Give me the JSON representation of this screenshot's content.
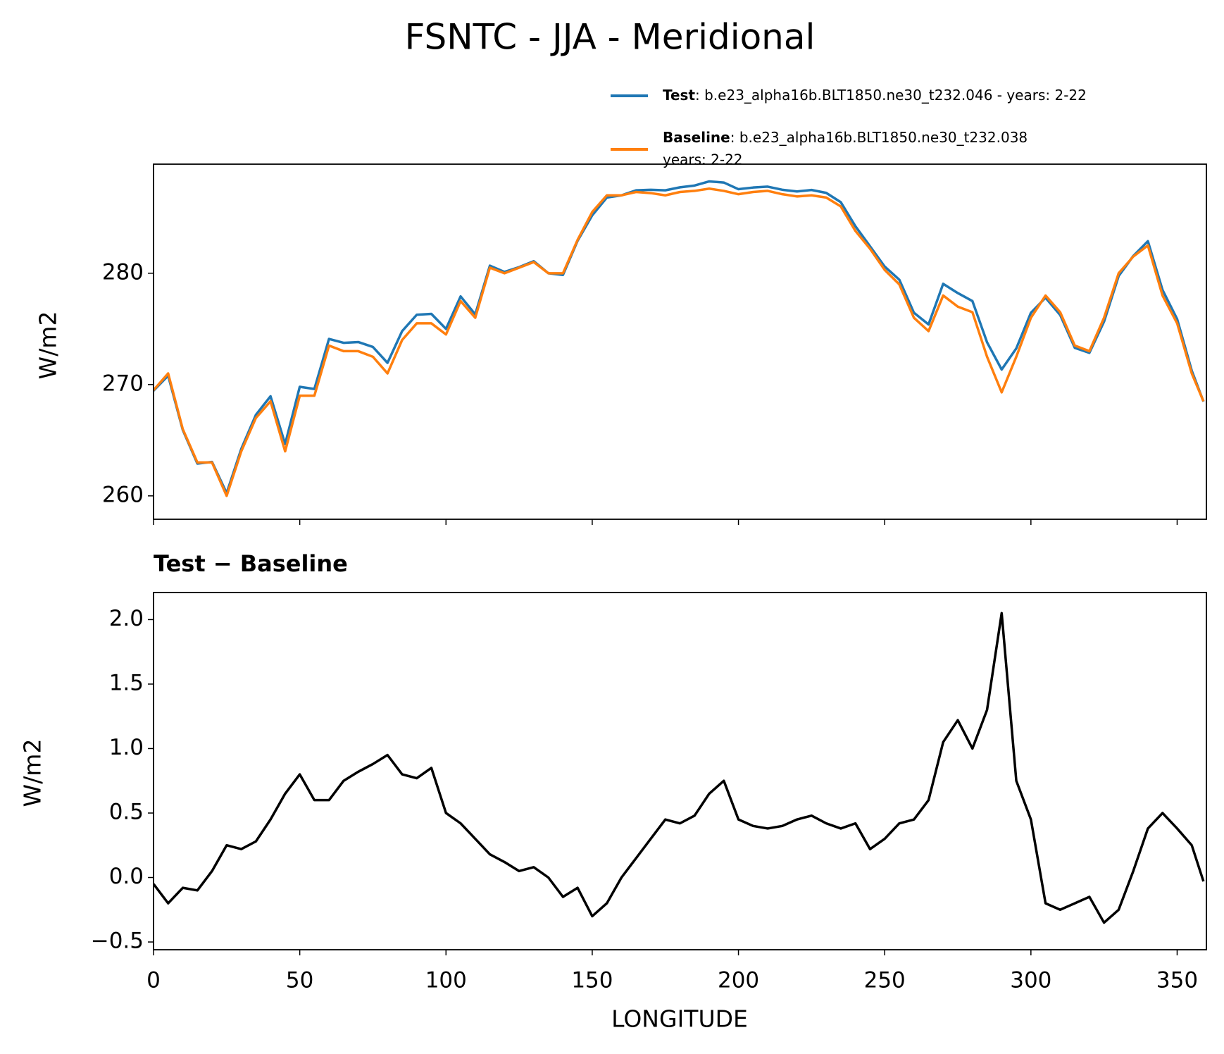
{
  "chart_data": [
    {
      "type": "line",
      "title": "FSNTC - JJA - Meridional",
      "ylabel": "W/m2",
      "x": [
        0,
        5,
        10,
        15,
        20,
        25,
        30,
        35,
        40,
        45,
        50,
        55,
        60,
        65,
        70,
        75,
        80,
        85,
        90,
        95,
        100,
        105,
        110,
        115,
        120,
        125,
        130,
        135,
        140,
        145,
        150,
        155,
        160,
        165,
        170,
        175,
        180,
        185,
        190,
        195,
        200,
        205,
        210,
        215,
        220,
        225,
        230,
        235,
        240,
        245,
        250,
        255,
        260,
        265,
        270,
        275,
        280,
        285,
        290,
        295,
        300,
        305,
        310,
        315,
        320,
        325,
        330,
        335,
        340,
        345,
        350,
        355,
        359
      ],
      "xlim": [
        0,
        360
      ],
      "ylim": [
        257.9,
        289.8
      ],
      "yticks": [
        260,
        270,
        280
      ],
      "series": [
        {
          "name": "Test",
          "description": [
            ": b.e23_alpha16b.BLT1850.ne30_t232.046 - years: 2-22"
          ],
          "color": "#1f77b4",
          "values": [
            269.45,
            270.8,
            265.92,
            262.9,
            263.05,
            260.25,
            264.22,
            267.28,
            268.95,
            264.65,
            269.8,
            269.6,
            274.1,
            273.75,
            273.82,
            273.38,
            271.95,
            274.8,
            276.27,
            276.35,
            275,
            277.92,
            276.3,
            280.68,
            280.12,
            280.55,
            281.08,
            280,
            279.85,
            282.92,
            285.2,
            286.8,
            287,
            287.45,
            287.5,
            287.45,
            287.72,
            287.88,
            288.25,
            288.15,
            287.55,
            287.7,
            287.78,
            287.5,
            287.35,
            287.48,
            287.22,
            286.38,
            284.22,
            282.42,
            280.6,
            279.42,
            276.45,
            275.4,
            279.05,
            278.22,
            277.5,
            273.8,
            271.35,
            273.25,
            276.45,
            277.8,
            276.25,
            273.3,
            272.85,
            275.65,
            279.75,
            281.55,
            282.88,
            278.5,
            275.88,
            271.25,
            268.47
          ]
        },
        {
          "name": "Baseline",
          "description": [
            ": b.e23_alpha16b.BLT1850.ne30_t232.038",
            "years: 2-22"
          ],
          "color": "#ff7f0e",
          "values": [
            269.5,
            271,
            266,
            263,
            263,
            260,
            264,
            267,
            268.5,
            264,
            269,
            269,
            273.5,
            273,
            273,
            272.5,
            271,
            274,
            275.5,
            275.5,
            274.5,
            277.5,
            276,
            280.5,
            280,
            280.5,
            281,
            280,
            280,
            283,
            285.5,
            287,
            287,
            287.3,
            287.2,
            287,
            287.3,
            287.4,
            287.6,
            287.4,
            287.1,
            287.3,
            287.4,
            287.1,
            286.9,
            287,
            286.8,
            286,
            283.8,
            282.2,
            280.3,
            279,
            276,
            274.8,
            278,
            277,
            276.5,
            272.5,
            269.3,
            272.5,
            276,
            278,
            276.5,
            273.5,
            273,
            276,
            280,
            281.5,
            282.5,
            278,
            275.5,
            271,
            268.5
          ]
        }
      ]
    },
    {
      "type": "line",
      "title": "Test − Baseline",
      "ylabel": "W/m2",
      "xlabel": "LONGITUDE",
      "x": [
        0,
        5,
        10,
        15,
        20,
        25,
        30,
        35,
        40,
        45,
        50,
        55,
        60,
        65,
        70,
        75,
        80,
        85,
        90,
        95,
        100,
        105,
        110,
        115,
        120,
        125,
        130,
        135,
        140,
        145,
        150,
        155,
        160,
        165,
        170,
        175,
        180,
        185,
        190,
        195,
        200,
        205,
        210,
        215,
        220,
        225,
        230,
        235,
        240,
        245,
        250,
        255,
        260,
        265,
        270,
        275,
        280,
        285,
        290,
        295,
        300,
        305,
        310,
        315,
        320,
        325,
        330,
        335,
        340,
        345,
        350,
        355,
        359
      ],
      "xlim": [
        0,
        360
      ],
      "ylim": [
        -0.56,
        2.21
      ],
      "xticks": [
        0,
        50,
        100,
        150,
        200,
        250,
        300,
        350
      ],
      "yticks": [
        {
          "value": -0.5,
          "label": "−0.5"
        },
        {
          "value": 0,
          "label": "0.0"
        },
        0.5,
        {
          "value": 1,
          "label": "1.0"
        },
        1.5,
        {
          "value": 2,
          "label": "2.0"
        }
      ],
      "series": [
        {
          "color": "#000000",
          "values": [
            -0.05,
            -0.2,
            -0.08,
            -0.1,
            0.05,
            0.25,
            0.22,
            0.28,
            0.45,
            0.65,
            0.8,
            0.6,
            0.6,
            0.75,
            0.82,
            0.88,
            0.95,
            0.8,
            0.77,
            0.85,
            0.5,
            0.42,
            0.3,
            0.18,
            0.12,
            0.05,
            0.08,
            0,
            -0.15,
            -0.08,
            -0.3,
            -0.2,
            0,
            0.15,
            0.3,
            0.45,
            0.42,
            0.48,
            0.65,
            0.75,
            0.45,
            0.4,
            0.38,
            0.4,
            0.45,
            0.48,
            0.42,
            0.38,
            0.42,
            0.22,
            0.3,
            0.42,
            0.45,
            0.6,
            1.05,
            1.22,
            1,
            1.3,
            2.05,
            0.75,
            0.45,
            -0.2,
            -0.25,
            -0.2,
            -0.15,
            -0.35,
            -0.25,
            0.05,
            0.38,
            0.5,
            0.38,
            0.25,
            -0.03
          ]
        }
      ]
    }
  ]
}
